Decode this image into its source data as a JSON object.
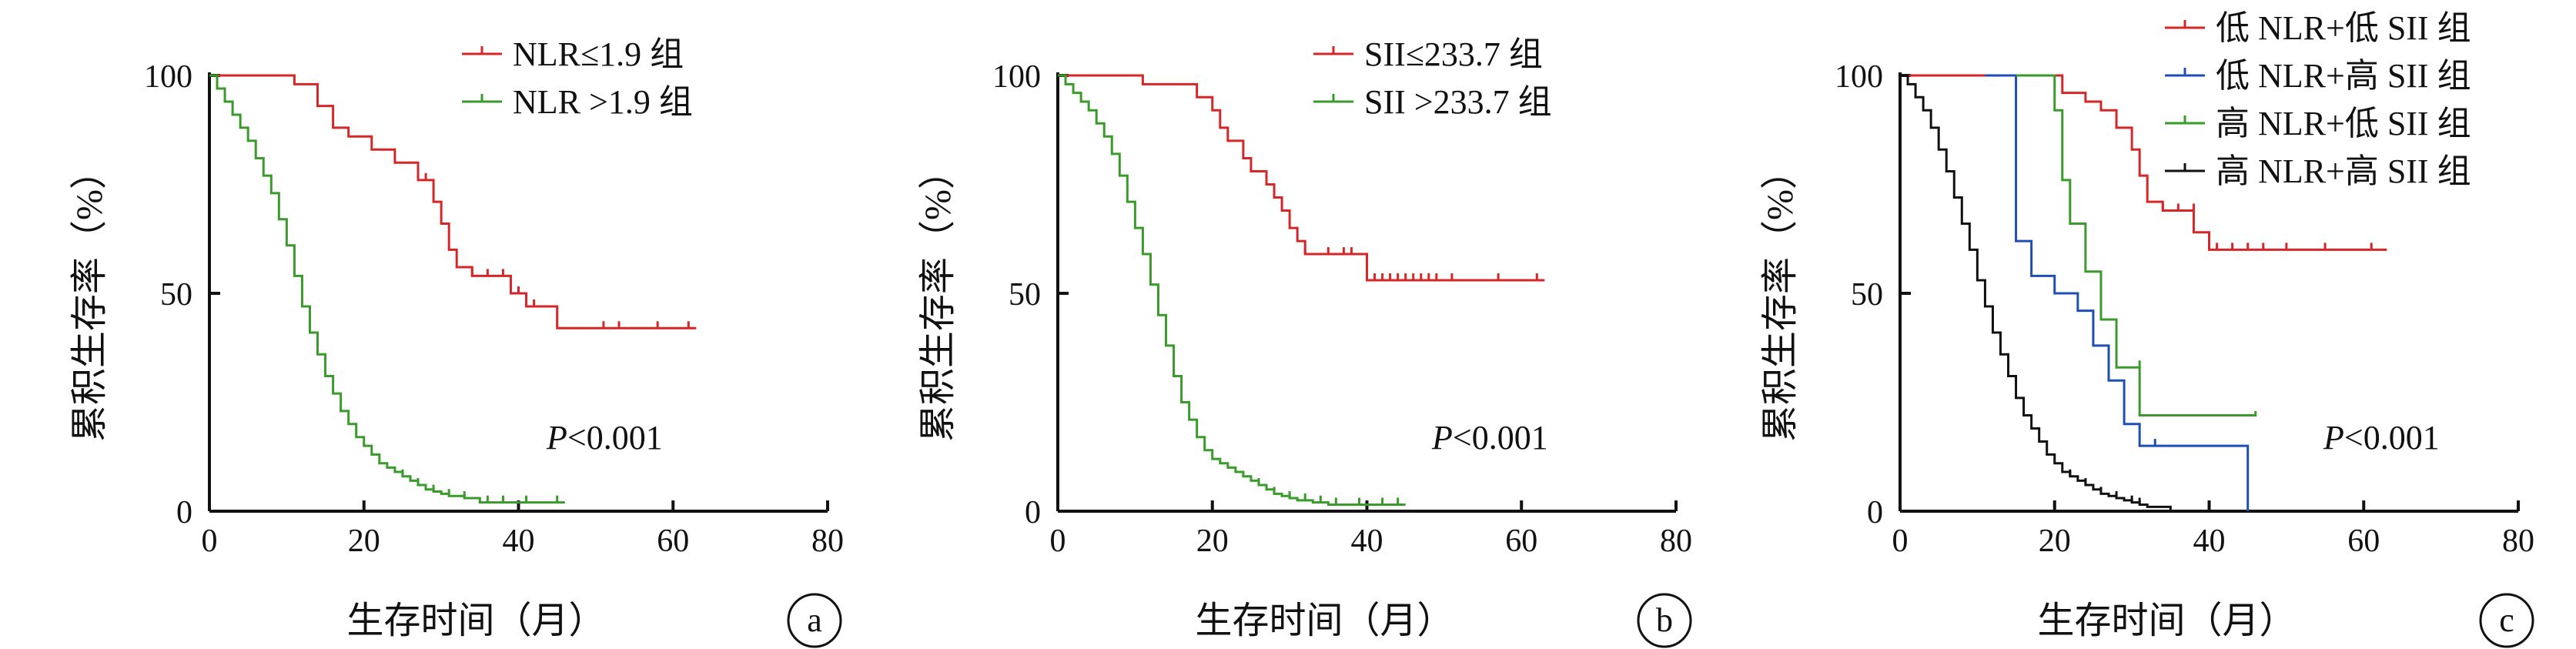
{
  "chart_data": [
    {
      "panel": "a",
      "type": "line",
      "xlabel": "生存时间（月）",
      "ylabel": "累积生存率（%）",
      "xlim": [
        0,
        80
      ],
      "ylim": [
        0,
        100
      ],
      "xticks": [
        0,
        20,
        40,
        60,
        80
      ],
      "yticks": [
        0,
        50,
        100
      ],
      "annotation_prefix": "P",
      "annotation_value": "<0.001",
      "legend_position": "top-right",
      "series": [
        {
          "name": "NLR≤1.9 组",
          "color": "#d62728",
          "x": [
            0,
            11,
            14,
            16,
            18,
            21,
            24,
            27,
            29,
            30,
            31,
            32,
            34,
            39,
            41,
            45,
            63
          ],
          "y": [
            100,
            98,
            93,
            88,
            86,
            83,
            80,
            76,
            71,
            66,
            60,
            56,
            54,
            50,
            47,
            42,
            42
          ],
          "censor_x": [
            28,
            34,
            36,
            38,
            40,
            42,
            51,
            53,
            58,
            62
          ],
          "censor_y": [
            76,
            54,
            54,
            54,
            50,
            47,
            42,
            42,
            42,
            42
          ]
        },
        {
          "name": "NLR >1.9 组",
          "color": "#3a9a2b",
          "x": [
            0,
            1,
            2,
            3,
            4,
            5,
            6,
            7,
            8,
            9,
            10,
            11,
            12,
            13,
            14,
            15,
            16,
            17,
            18,
            19,
            20,
            21,
            22,
            23,
            24,
            25,
            26,
            27,
            28,
            29,
            30,
            31,
            33,
            35,
            46
          ],
          "y": [
            100,
            97,
            94,
            91,
            88,
            85,
            81,
            77,
            73,
            67,
            61,
            54,
            47,
            41,
            36,
            31,
            27,
            23,
            20,
            17,
            15,
            13,
            11,
            10,
            9,
            8,
            7,
            6,
            5,
            4.5,
            4,
            3.5,
            3,
            2,
            2
          ],
          "censor_x": [
            25,
            27,
            29,
            31,
            33,
            36,
            38,
            41,
            45
          ],
          "censor_y": [
            8,
            6,
            4.5,
            3.5,
            3,
            2,
            2,
            2,
            2
          ]
        }
      ]
    },
    {
      "panel": "b",
      "type": "line",
      "xlabel": "生存时间（月）",
      "ylabel": "累积生存率（%）",
      "xlim": [
        0,
        80
      ],
      "ylim": [
        0,
        100
      ],
      "xticks": [
        0,
        20,
        40,
        60,
        80
      ],
      "yticks": [
        0,
        50,
        100
      ],
      "annotation_prefix": "P",
      "annotation_value": "<0.001",
      "legend_position": "top-right",
      "series": [
        {
          "name": "SII≤233.7 组",
          "color": "#d62728",
          "x": [
            0,
            11,
            18,
            20,
            21,
            22,
            24,
            25,
            27,
            28,
            29,
            30,
            31,
            32,
            33,
            40,
            63
          ],
          "y": [
            100,
            98,
            95,
            92,
            88,
            85,
            81,
            78,
            75,
            72,
            69,
            65,
            62,
            59,
            59,
            53,
            53
          ],
          "censor_x": [
            32,
            35,
            37,
            38,
            41,
            42,
            43,
            44,
            45,
            46,
            47,
            48,
            49,
            51,
            57,
            62
          ],
          "censor_y": [
            59,
            59,
            59,
            59,
            53,
            53,
            53,
            53,
            53,
            53,
            53,
            53,
            53,
            53,
            53,
            53
          ]
        },
        {
          "name": "SII >233.7 组",
          "color": "#3a9a2b",
          "x": [
            0,
            1,
            2,
            3,
            4,
            5,
            6,
            7,
            8,
            9,
            10,
            11,
            12,
            13,
            14,
            15,
            16,
            17,
            18,
            19,
            20,
            21,
            22,
            23,
            24,
            25,
            26,
            27,
            28,
            29,
            30,
            31,
            33,
            35,
            45
          ],
          "y": [
            100,
            98,
            96,
            94,
            92,
            89,
            86,
            82,
            77,
            71,
            65,
            59,
            52,
            45,
            38,
            31,
            25,
            21,
            17,
            14,
            12,
            11,
            10,
            9,
            8,
            7,
            6,
            5,
            4,
            3.5,
            3,
            2.5,
            2,
            1.5,
            1.5
          ],
          "censor_x": [
            26,
            28,
            30,
            32,
            34,
            36,
            39,
            42,
            44
          ],
          "censor_y": [
            6,
            4,
            3,
            2.5,
            2,
            1.5,
            1.5,
            1.5,
            1.5
          ]
        }
      ]
    },
    {
      "panel": "c",
      "type": "line",
      "xlabel": "生存时间（月）",
      "ylabel": "累积生存率（%）",
      "xlim": [
        0,
        80
      ],
      "ylim": [
        0,
        100
      ],
      "xticks": [
        0,
        20,
        40,
        60,
        80
      ],
      "yticks": [
        0,
        50,
        100
      ],
      "annotation_prefix": "P",
      "annotation_value": "<0.001",
      "legend_position": "top-right",
      "series": [
        {
          "name": "低 NLR+低 SII 组",
          "color": "#d62728",
          "x": [
            0,
            21,
            24,
            26,
            28,
            30,
            31,
            32,
            34,
            38,
            40,
            63
          ],
          "y": [
            100,
            96,
            94,
            92,
            88,
            83,
            77,
            71,
            69,
            64,
            60,
            60
          ],
          "censor_x": [
            34,
            36,
            38,
            41,
            43,
            45,
            47,
            50,
            55,
            61
          ],
          "censor_y": [
            69,
            69,
            69,
            60,
            60,
            60,
            60,
            60,
            60,
            60
          ]
        },
        {
          "name": "低 NLR+高 SII 组",
          "color": "#1f4fb4",
          "x": [
            11,
            14,
            15,
            17,
            20,
            23,
            25,
            27,
            29,
            31,
            38,
            45
          ],
          "y": [
            100,
            100,
            62,
            54,
            50,
            46,
            38,
            30,
            20,
            15,
            15,
            0
          ],
          "censor_x": [
            33
          ],
          "censor_y": [
            15
          ]
        },
        {
          "name": "高 NLR+低 SII 组",
          "color": "#3a9a2b",
          "x": [
            15,
            19,
            20,
            21,
            22,
            24,
            26,
            28,
            30,
            31,
            46
          ],
          "y": [
            100,
            100,
            92,
            76,
            66,
            55,
            44,
            33,
            33,
            22,
            23
          ],
          "censor_x": [
            31
          ],
          "censor_y": [
            33
          ]
        },
        {
          "name": "高 NLR+高 SII 组",
          "color": "#111111",
          "x": [
            0,
            1,
            2,
            3,
            4,
            5,
            6,
            7,
            8,
            9,
            10,
            11,
            12,
            13,
            14,
            15,
            16,
            17,
            18,
            19,
            20,
            21,
            22,
            23,
            24,
            25,
            26,
            27,
            28,
            29,
            30,
            31,
            32,
            34,
            35
          ],
          "y": [
            100,
            98,
            95,
            92,
            88,
            83,
            78,
            72,
            66,
            60,
            53,
            47,
            41,
            36,
            31,
            26,
            22,
            19,
            16,
            13,
            11,
            9,
            8,
            7,
            6,
            5,
            4,
            3.5,
            3,
            2.5,
            2,
            1.5,
            1,
            1,
            0
          ],
          "censor_x": [
            22,
            24,
            26,
            28,
            30,
            31
          ],
          "censor_y": [
            8,
            6,
            4,
            3,
            2,
            1.5
          ]
        }
      ]
    }
  ]
}
